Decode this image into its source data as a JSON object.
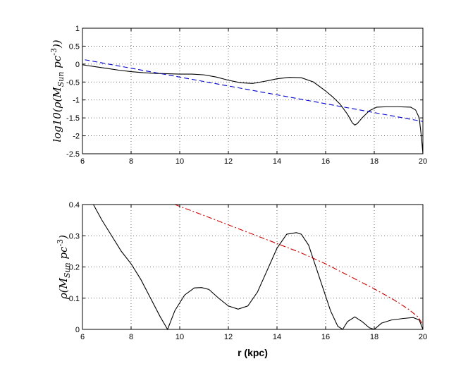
{
  "chart_data": [
    {
      "type": "line",
      "ylabel": "log10(ρ(M_Sun pc^-3))",
      "xlabel": "",
      "xlim": [
        6,
        20
      ],
      "ylim": [
        -2.5,
        1
      ],
      "xticks": [
        "6",
        "8",
        "10",
        "12",
        "14",
        "16",
        "18",
        "20"
      ],
      "yticks": [
        "-2.5",
        "-2",
        "-1.5",
        "-1",
        "-0.5",
        "0",
        "0.5",
        "1"
      ],
      "grid": true,
      "series": [
        {
          "style": "solid",
          "color": "#000000",
          "x": [
            6.0,
            6.5,
            7.0,
            7.5,
            8.0,
            8.5,
            9.0,
            9.5,
            10.0,
            10.5,
            11.0,
            11.5,
            12.0,
            12.5,
            13.0,
            13.5,
            14.0,
            14.5,
            15.0,
            15.5,
            16.0,
            16.3,
            16.6,
            16.9,
            17.1,
            17.2,
            17.3,
            17.5,
            17.8,
            18.1,
            18.5,
            19.0,
            19.5,
            19.7,
            19.85,
            19.95,
            20.0
          ],
          "y": [
            -0.02,
            -0.07,
            -0.12,
            -0.17,
            -0.21,
            -0.24,
            -0.26,
            -0.27,
            -0.28,
            -0.28,
            -0.3,
            -0.36,
            -0.45,
            -0.52,
            -0.54,
            -0.48,
            -0.41,
            -0.37,
            -0.38,
            -0.5,
            -0.75,
            -0.92,
            -1.12,
            -1.4,
            -1.64,
            -1.7,
            -1.66,
            -1.5,
            -1.3,
            -1.2,
            -1.19,
            -1.19,
            -1.2,
            -1.28,
            -1.5,
            -2.1,
            -2.5
          ]
        },
        {
          "style": "dashed",
          "color": "#0000cc",
          "x": [
            6.1,
            20.0
          ],
          "y": [
            0.12,
            -1.6
          ]
        }
      ]
    },
    {
      "type": "line",
      "ylabel": "ρ(M_Sun pc^-3)",
      "xlabel": "r (kpc)",
      "xlim": [
        6,
        20
      ],
      "ylim": [
        0,
        0.4
      ],
      "xticks": [
        "6",
        "8",
        "10",
        "12",
        "14",
        "16",
        "18",
        "20"
      ],
      "yticks": [
        "0",
        "0.1",
        "0.2",
        "0.3",
        "0.4"
      ],
      "grid": true,
      "series": [
        {
          "style": "solid",
          "color": "#000000",
          "x": [
            6.45,
            6.8,
            7.2,
            7.6,
            8.0,
            8.4,
            8.8,
            9.2,
            9.5,
            9.8,
            10.2,
            10.6,
            10.9,
            11.2,
            11.6,
            12.0,
            12.4,
            12.8,
            13.2,
            13.6,
            14.0,
            14.4,
            14.8,
            15.0,
            15.3,
            15.6,
            15.9,
            16.2,
            16.5,
            16.7,
            16.9,
            17.2,
            17.5,
            17.8,
            18.0,
            18.3,
            18.7,
            19.2,
            19.6,
            19.85,
            20.0
          ],
          "y": [
            0.4,
            0.35,
            0.3,
            0.25,
            0.21,
            0.16,
            0.1,
            0.04,
            0.0,
            0.06,
            0.11,
            0.133,
            0.134,
            0.128,
            0.1,
            0.075,
            0.065,
            0.075,
            0.12,
            0.19,
            0.26,
            0.305,
            0.31,
            0.305,
            0.27,
            0.2,
            0.13,
            0.06,
            0.01,
            0.0,
            0.025,
            0.04,
            0.025,
            0.005,
            0.0,
            0.02,
            0.03,
            0.035,
            0.038,
            0.03,
            0.0
          ]
        },
        {
          "style": "dashdot",
          "color": "#cc0000",
          "x": [
            9.8,
            11.0,
            12.0,
            13.0,
            14.0,
            15.0,
            16.0,
            17.0,
            18.0,
            18.8,
            19.4,
            19.8,
            20.0
          ],
          "y": [
            0.4,
            0.365,
            0.335,
            0.305,
            0.275,
            0.245,
            0.21,
            0.17,
            0.13,
            0.095,
            0.065,
            0.04,
            0.015
          ]
        }
      ]
    }
  ]
}
